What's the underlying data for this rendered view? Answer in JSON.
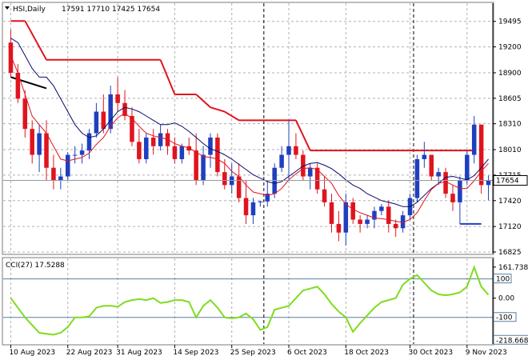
{
  "window": {
    "symbol_line": "HSI,Daily",
    "ohlc": "17591 17710 17425 17654",
    "collapse_icon": "triangle-down-icon"
  },
  "colors": {
    "bull": "#1f3fbf",
    "bear": "#e0141e",
    "ma_fast": "#e0141e",
    "ma_slow": "#0a0a6e",
    "stop_line": "#e0141e",
    "cci_line": "#7fdc1e",
    "grid": "#b0b0b0",
    "price_marker_bg": "#ffffff"
  },
  "chart_data": {
    "type": "candlestick",
    "main": {
      "ylim": [
        16825,
        19650
      ],
      "y_ticks": [
        {
          "value": 19495,
          "label": "19495"
        },
        {
          "value": 19200,
          "label": "19200"
        },
        {
          "value": 18900,
          "label": "18900"
        },
        {
          "value": 18605,
          "label": "18605"
        },
        {
          "value": 18310,
          "label": "18310"
        },
        {
          "value": 18010,
          "label": "18010"
        },
        {
          "value": 17715,
          "label": "17715"
        },
        {
          "value": 17420,
          "label": "17420"
        },
        {
          "value": 17120,
          "label": "17120"
        },
        {
          "value": 16825,
          "label": "16825"
        }
      ],
      "current_price": {
        "value": 17654,
        "label": "17654"
      },
      "candles": [
        [
          19250,
          19400,
          18850,
          18900
        ],
        [
          18900,
          19000,
          18550,
          18600
        ],
        [
          18600,
          18700,
          18150,
          18250
        ],
        [
          18250,
          18350,
          17850,
          17950
        ],
        [
          17950,
          18300,
          17750,
          18200
        ],
        [
          18200,
          18350,
          17650,
          17800
        ],
        [
          17800,
          17950,
          17550,
          17650
        ],
        [
          17650,
          17800,
          17550,
          17700
        ],
        [
          17700,
          17980,
          17650,
          17950
        ],
        [
          17950,
          18050,
          17850,
          17950
        ],
        [
          17950,
          18080,
          17850,
          18000
        ],
        [
          18000,
          18250,
          17900,
          18200
        ],
        [
          18200,
          18550,
          18150,
          18450
        ],
        [
          18450,
          18650,
          18200,
          18250
        ],
        [
          18250,
          18750,
          18200,
          18650
        ],
        [
          18650,
          18850,
          18450,
          18550
        ],
        [
          18550,
          18700,
          18350,
          18400
        ],
        [
          18400,
          18500,
          18050,
          18100
        ],
        [
          18100,
          18250,
          17850,
          17900
        ],
        [
          17900,
          18200,
          17850,
          18150
        ],
        [
          18150,
          18250,
          17950,
          18050
        ],
        [
          18050,
          18300,
          18000,
          18200
        ],
        [
          18200,
          18250,
          17950,
          18050
        ],
        [
          18050,
          18150,
          17850,
          17900
        ],
        [
          17900,
          18080,
          17850,
          18050
        ],
        [
          18050,
          18150,
          17950,
          18000
        ],
        [
          18000,
          18200,
          17600,
          17650
        ],
        [
          17650,
          18050,
          17600,
          17950
        ],
        [
          17950,
          18200,
          17800,
          18150
        ],
        [
          18150,
          18200,
          17700,
          17750
        ],
        [
          17750,
          17900,
          17550,
          17600
        ],
        [
          17600,
          17850,
          17500,
          17700
        ],
        [
          17700,
          17850,
          17400,
          17450
        ],
        [
          17450,
          17650,
          17150,
          17250
        ],
        [
          17250,
          17450,
          17150,
          17400
        ],
        [
          17400,
          17420,
          17350,
          17410
        ],
        [
          17410,
          17650,
          17350,
          17500
        ],
        [
          17500,
          17850,
          17450,
          17800
        ],
        [
          17800,
          18050,
          17750,
          17950
        ],
        [
          17950,
          18350,
          17650,
          18050
        ],
        [
          18050,
          18200,
          17900,
          17950
        ],
        [
          17950,
          18000,
          17650,
          17700
        ],
        [
          17700,
          17850,
          17550,
          17800
        ],
        [
          17800,
          17850,
          17500,
          17550
        ],
        [
          17550,
          17700,
          17350,
          17400
        ],
        [
          17400,
          17500,
          17050,
          17150
        ],
        [
          17150,
          17300,
          16950,
          17050
        ],
        [
          17050,
          17500,
          16900,
          17400
        ],
        [
          17400,
          17450,
          17150,
          17200
        ],
        [
          17200,
          17250,
          17050,
          17150
        ],
        [
          17150,
          17250,
          17100,
          17200
        ],
        [
          17200,
          17350,
          17100,
          17300
        ],
        [
          17300,
          17380,
          17250,
          17350
        ],
        [
          17350,
          17420,
          17050,
          17150
        ],
        [
          17150,
          17200,
          17000,
          17100
        ],
        [
          17100,
          17300,
          17050,
          17250
        ],
        [
          17250,
          17500,
          17200,
          17450
        ],
        [
          17450,
          17950,
          17400,
          17900
        ],
        [
          17900,
          18100,
          17800,
          17950
        ],
        [
          17950,
          17950,
          17650,
          17700
        ],
        [
          17700,
          17800,
          17600,
          17750
        ],
        [
          17750,
          17800,
          17450,
          17500
        ],
        [
          17500,
          17600,
          17300,
          17400
        ],
        [
          17400,
          17700,
          17150,
          17650
        ],
        [
          17650,
          18000,
          17600,
          17950
        ],
        [
          17950,
          18400,
          17850,
          18300
        ],
        [
          18300,
          18300,
          17500,
          17600
        ],
        [
          17600,
          17710,
          17425,
          17654
        ]
      ],
      "ma_fast": [
        19100,
        18900,
        18650,
        18400,
        18300,
        18200,
        18050,
        17900,
        17880,
        17900,
        17920,
        17970,
        18070,
        18150,
        18280,
        18380,
        18430,
        18370,
        18280,
        18200,
        18170,
        18150,
        18130,
        18080,
        18050,
        18030,
        17980,
        17930,
        17920,
        17900,
        17850,
        17760,
        17700,
        17600,
        17520,
        17500,
        17480,
        17500,
        17560,
        17660,
        17730,
        17790,
        17800,
        17780,
        17700,
        17620,
        17480,
        17380,
        17320,
        17280,
        17250,
        17220,
        17210,
        17200,
        17180,
        17170,
        17200,
        17280,
        17420,
        17550,
        17620,
        17640,
        17600,
        17560,
        17560,
        17650,
        17760,
        17850
      ],
      "ma_slow": [
        19300,
        19250,
        19100,
        18950,
        18850,
        18850,
        18750,
        18600,
        18450,
        18300,
        18200,
        18150,
        18170,
        18250,
        18350,
        18450,
        18500,
        18480,
        18450,
        18400,
        18350,
        18300,
        18300,
        18320,
        18280,
        18220,
        18150,
        18080,
        18020,
        17990,
        17950,
        17900,
        17840,
        17780,
        17720,
        17680,
        17640,
        17620,
        17640,
        17700,
        17760,
        17820,
        17850,
        17860,
        17830,
        17790,
        17730,
        17660,
        17600,
        17560,
        17500,
        17460,
        17420,
        17400,
        17380,
        17350,
        17350,
        17400,
        17480,
        17560,
        17620,
        17690,
        17700,
        17680,
        17660,
        17710,
        17800,
        17900
      ],
      "stop_segments": [
        [
          0,
          19500,
          2,
          19500
        ],
        [
          2,
          19500,
          5,
          19050
        ],
        [
          5,
          19050,
          21,
          19050
        ],
        [
          21,
          19050,
          23,
          18650
        ],
        [
          23,
          18650,
          26,
          18650
        ],
        [
          26,
          18650,
          28,
          18500
        ],
        [
          28,
          18500,
          30,
          18450
        ],
        [
          30,
          18450,
          32,
          18350
        ],
        [
          32,
          18350,
          40,
          18350
        ],
        [
          40,
          18350,
          42,
          18000
        ],
        [
          42,
          18000,
          65,
          18000
        ]
      ],
      "black_segment": [
        0,
        18850,
        5,
        18720
      ],
      "cyan_marker": [
        63,
        17150,
        66,
        17150
      ]
    },
    "cci": {
      "title": "CCI(27) 17.5288",
      "ylim": [
        -230,
        190
      ],
      "levels": [
        100,
        -100
      ],
      "y_ticks": [
        {
          "value": 161.7385,
          "label": "161.7385"
        },
        {
          "value": 100,
          "label": "100"
        },
        {
          "value": 0,
          "label": "0.00"
        },
        {
          "value": -100,
          "label": "-100"
        },
        {
          "value": -218.668,
          "label": "-218.668"
        }
      ],
      "values": [
        0,
        -50,
        -100,
        -140,
        -180,
        -185,
        -190,
        -180,
        -150,
        -100,
        -100,
        -95,
        -50,
        -40,
        -40,
        -45,
        -20,
        -10,
        -5,
        -10,
        0,
        -25,
        -20,
        -10,
        -10,
        -20,
        -100,
        -40,
        -10,
        -50,
        -100,
        -105,
        -100,
        -80,
        -110,
        -165,
        -150,
        -60,
        -50,
        -40,
        0,
        40,
        50,
        60,
        20,
        -30,
        -70,
        -100,
        -175,
        -130,
        -90,
        -50,
        -20,
        -10,
        0,
        70,
        100,
        120,
        80,
        40,
        20,
        15,
        20,
        30,
        60,
        161,
        60,
        17.5288
      ]
    },
    "x_axis": {
      "labels": [
        {
          "index": 0,
          "label": "10 Aug 2023"
        },
        {
          "index": 8,
          "label": "22 Aug 2023"
        },
        {
          "index": 15,
          "label": "31 Aug 2023"
        },
        {
          "index": 23,
          "label": "14 Sep 2023"
        },
        {
          "index": 31,
          "label": "25 Sep 2023"
        },
        {
          "index": 39,
          "label": "6 Oct 2023"
        },
        {
          "index": 47,
          "label": "18 Oct 2023"
        },
        {
          "index": 56,
          "label": "30 Oct 2023"
        },
        {
          "index": 64,
          "label": "9 Nov 2023"
        }
      ],
      "separators": [
        36,
        57
      ]
    },
    "grid": true
  }
}
